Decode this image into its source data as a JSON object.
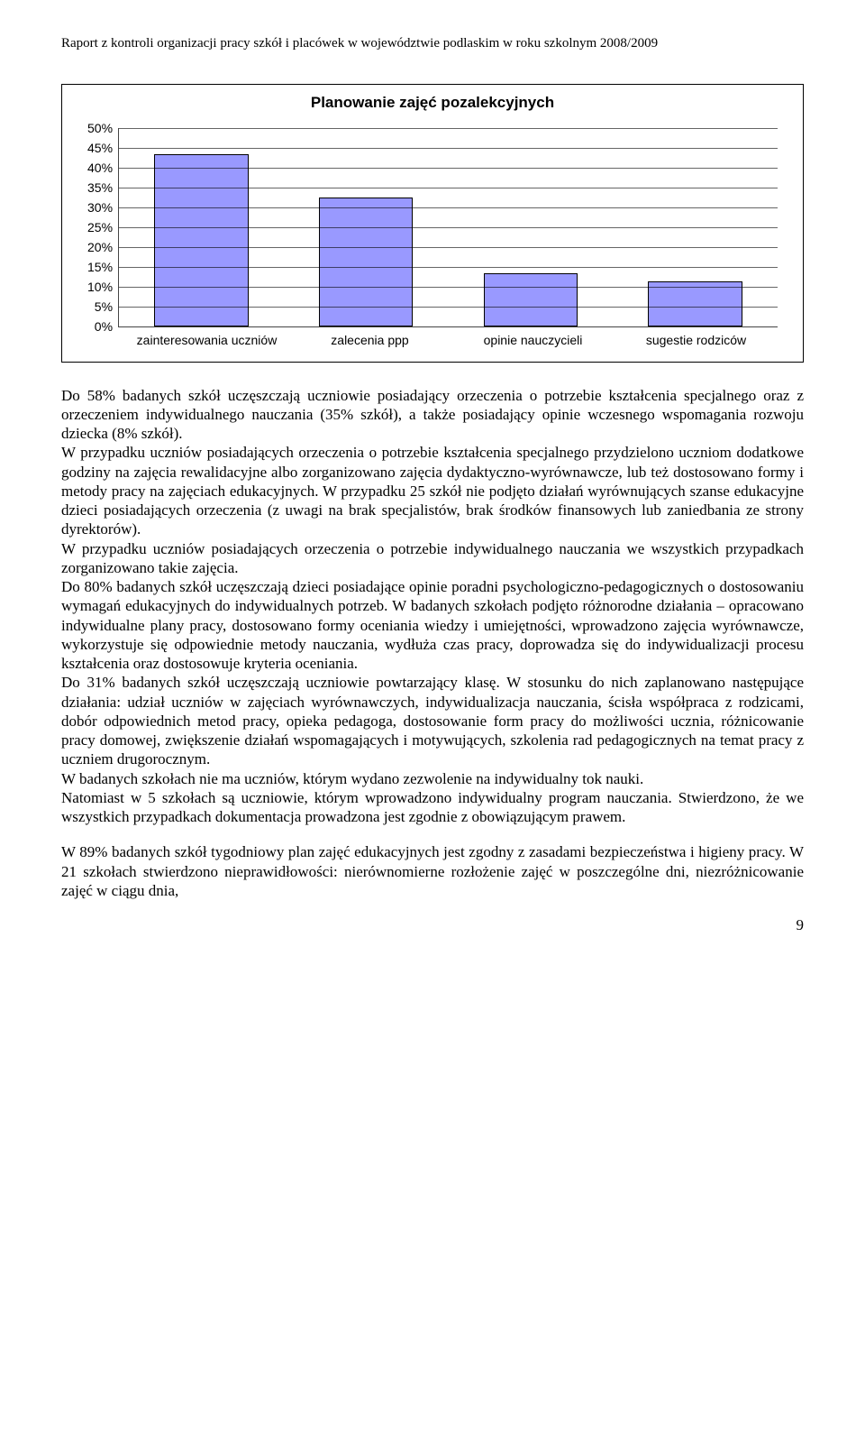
{
  "header": "Raport z kontroli organizacji pracy szkół i placówek w województwie podlaskim w roku szkolnym 2008/2009",
  "chart": {
    "title": "Planowanie zajęć pozalekcyjnych",
    "y_ticks": [
      "50%",
      "45%",
      "40%",
      "35%",
      "30%",
      "25%",
      "20%",
      "15%",
      "10%",
      "5%",
      "0%"
    ],
    "y_max": 50,
    "categories": [
      "zainteresowania uczniów",
      "zalecenia ppp",
      "opinie nauczycieli",
      "sugestie rodziców"
    ],
    "values": [
      43,
      32,
      13,
      11
    ],
    "bar_color": "#9999ff",
    "bar_border": "#000000",
    "grid_color": "#000000",
    "background": "#ffffff"
  },
  "paragraphs": [
    "Do 58% badanych szkół uczęszczają uczniowie posiadający orzeczenia o potrzebie kształcenia specjalnego oraz z orzeczeniem indywidualnego nauczania (35% szkół), a także posiadający opinie wczesnego wspomagania rozwoju dziecka (8% szkół).",
    "W przypadku uczniów posiadających orzeczenia o potrzebie kształcenia specjalnego przydzielono uczniom dodatkowe godziny na zajęcia rewalidacyjne albo zorganizowano zajęcia dydaktyczno-wyrównawcze, lub też dostosowano formy i metody pracy na zajęciach edukacyjnych. W przypadku 25 szkół nie podjęto działań wyrównujących szanse edukacyjne dzieci posiadających orzeczenia (z uwagi na brak specjalistów, brak środków finansowych lub zaniedbania ze strony dyrektorów).",
    "W przypadku uczniów posiadających orzeczenia o potrzebie indywidualnego nauczania we wszystkich przypadkach zorganizowano takie zajęcia.",
    "Do 80% badanych szkół uczęszczają dzieci posiadające opinie poradni psychologiczno-pedagogicznych o dostosowaniu wymagań edukacyjnych do indywidualnych potrzeb. W badanych szkołach podjęto różnorodne działania – opracowano indywidualne plany pracy, dostosowano formy oceniania wiedzy i umiejętności, wprowadzono zajęcia wyrównawcze, wykorzystuje się odpowiednie metody nauczania, wydłuża czas pracy, doprowadza się do indywidualizacji procesu kształcenia oraz dostosowuje kryteria oceniania.",
    "Do 31% badanych szkół uczęszczają uczniowie powtarzający klasę. W stosunku do nich zaplanowano następujące działania: udział uczniów w zajęciach wyrównawczych, indywidualizacja nauczania, ścisła współpraca z rodzicami, dobór odpowiednich metod pracy, opieka pedagoga, dostosowanie form pracy do możliwości ucznia, różnicowanie pracy domowej, zwiększenie działań wspomagających i motywujących, szkolenia rad pedagogicznych na temat pracy z uczniem drugorocznym.",
    "W badanych szkołach nie ma uczniów, którym wydano zezwolenie na indywidualny tok nauki.",
    "Natomiast w 5 szkołach są uczniowie, którym wprowadzono indywidualny program nauczania. Stwierdzono, że we wszystkich przypadkach dokumentacja prowadzona jest zgodnie z obowiązującym prawem."
  ],
  "paragraph_after_gap": "W 89% badanych szkół tygodniowy plan zajęć edukacyjnych jest zgodny z zasadami bezpieczeństwa i higieny pracy. W 21 szkołach stwierdzono nieprawidłowości: nierównomierne rozłożenie zajęć w poszczególne dni, niezróżnicowanie zajęć w ciągu dnia,",
  "page_number": "9"
}
